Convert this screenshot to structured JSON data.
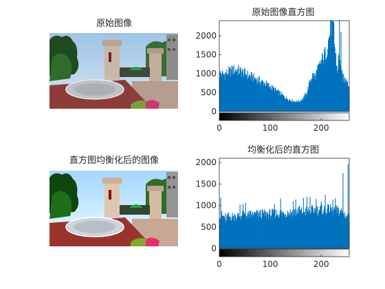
{
  "figure": {
    "colors": {
      "series": "#0072BD",
      "axis": "#262626",
      "background": "#ffffff"
    },
    "panels": [
      {
        "id": "orig_image",
        "title": "原始图像",
        "image_icon": "campus-gate-photo-icon"
      },
      {
        "id": "eq_image",
        "title": "直方图均衡化后的图像",
        "image_icon": "campus-gate-photo-icon"
      }
    ]
  },
  "chart_data": [
    {
      "type": "bar",
      "title": "原始图像直方图",
      "xlabel": "",
      "ylabel": "",
      "xlim": [
        0,
        255
      ],
      "ylim": [
        0,
        2400
      ],
      "xticks": [
        0,
        100,
        200
      ],
      "yticks": [
        0,
        500,
        1000,
        1500,
        2000
      ],
      "colorbar": "grayscale",
      "grid": false,
      "bins": 256,
      "profile": [
        [
          0,
          1000
        ],
        [
          8,
          980
        ],
        [
          14,
          1010
        ],
        [
          20,
          1050
        ],
        [
          26,
          1090
        ],
        [
          32,
          1100
        ],
        [
          40,
          1070
        ],
        [
          50,
          1000
        ],
        [
          60,
          930
        ],
        [
          70,
          870
        ],
        [
          80,
          800
        ],
        [
          90,
          740
        ],
        [
          100,
          650
        ],
        [
          110,
          560
        ],
        [
          120,
          470
        ],
        [
          130,
          360
        ],
        [
          140,
          300
        ],
        [
          150,
          260
        ],
        [
          158,
          280
        ],
        [
          165,
          350
        ],
        [
          172,
          500
        ],
        [
          176,
          700
        ],
        [
          182,
          960
        ],
        [
          188,
          920
        ],
        [
          195,
          1150
        ],
        [
          202,
          1380
        ],
        [
          210,
          1570
        ],
        [
          216,
          2000
        ],
        [
          220,
          2350
        ],
        [
          224,
          2150
        ],
        [
          228,
          1550
        ],
        [
          232,
          1050
        ],
        [
          236,
          1650
        ],
        [
          240,
          980
        ],
        [
          246,
          820
        ],
        [
          250,
          930
        ],
        [
          255,
          600
        ]
      ],
      "spikes": [
        [
          221,
          2400
        ],
        [
          225,
          2350
        ],
        [
          236,
          2400
        ],
        [
          239,
          2100
        ]
      ]
    },
    {
      "type": "bar",
      "title": "均衡化后的直方图",
      "xlabel": "",
      "ylabel": "",
      "xlim": [
        0,
        255
      ],
      "ylim": [
        0,
        2100
      ],
      "xticks": [
        0,
        100,
        200
      ],
      "yticks": [
        0,
        500,
        1000,
        1500,
        2000
      ],
      "colorbar": "grayscale",
      "grid": false,
      "bins": 256,
      "profile": [
        [
          0,
          800
        ],
        [
          10,
          720
        ],
        [
          20,
          740
        ],
        [
          40,
          760
        ],
        [
          60,
          780
        ],
        [
          80,
          800
        ],
        [
          100,
          800
        ],
        [
          120,
          820
        ],
        [
          140,
          840
        ],
        [
          160,
          860
        ],
        [
          180,
          880
        ],
        [
          200,
          900
        ],
        [
          220,
          900
        ],
        [
          240,
          860
        ],
        [
          255,
          700
        ]
      ],
      "spikes": [
        [
          2,
          1180
        ],
        [
          12,
          600
        ],
        [
          40,
          1020
        ],
        [
          46,
          1030
        ],
        [
          51,
          1060
        ],
        [
          85,
          880
        ],
        [
          108,
          1030
        ],
        [
          120,
          1160
        ],
        [
          145,
          1100
        ],
        [
          150,
          1140
        ],
        [
          157,
          1000
        ],
        [
          165,
          1180
        ],
        [
          172,
          1200
        ],
        [
          178,
          1200
        ],
        [
          190,
          1150
        ],
        [
          200,
          1090
        ],
        [
          208,
          1250
        ],
        [
          215,
          1000
        ],
        [
          223,
          1140
        ],
        [
          228,
          1170
        ],
        [
          243,
          1750
        ],
        [
          253,
          1970
        ]
      ]
    }
  ]
}
